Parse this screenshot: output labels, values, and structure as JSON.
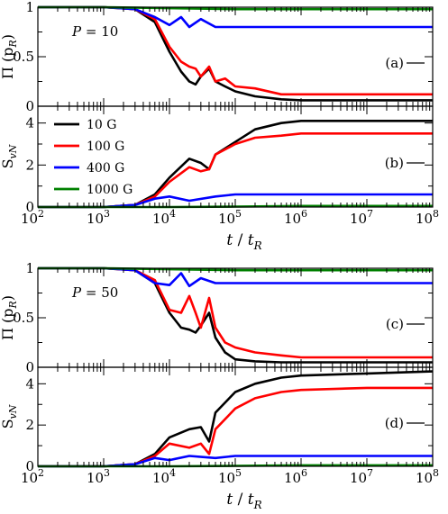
{
  "chart_data": [
    {
      "panel": "(a)",
      "type": "line",
      "annotation": "P = 10",
      "ylabel": "Π (p_R)",
      "ylabel_display": "Π (p",
      "ylabel_sub": "R",
      "ylabel_close": ")",
      "xscale": "log",
      "xlim": [
        100,
        100000000
      ],
      "ylim": [
        0,
        1
      ],
      "yticks": [
        "0",
        "0.5",
        "1"
      ],
      "grid": false,
      "series": [
        {
          "name": "10 G",
          "color": "#000000",
          "x": [
            100,
            1000,
            3000,
            6000,
            10000,
            15000,
            20000,
            25000,
            30000,
            40000,
            50000,
            70000,
            100000,
            200000,
            500000,
            1000000,
            10000000,
            100000000
          ],
          "y": [
            1.0,
            1.0,
            0.98,
            0.85,
            0.55,
            0.35,
            0.25,
            0.22,
            0.3,
            0.38,
            0.25,
            0.2,
            0.15,
            0.1,
            0.07,
            0.06,
            0.06,
            0.06
          ]
        },
        {
          "name": "100 G",
          "color": "#ff0000",
          "x": [
            100,
            1000,
            3000,
            6000,
            10000,
            15000,
            20000,
            25000,
            30000,
            40000,
            50000,
            70000,
            100000,
            200000,
            500000,
            1000000,
            10000000,
            100000000
          ],
          "y": [
            1.0,
            1.0,
            0.98,
            0.88,
            0.6,
            0.45,
            0.4,
            0.38,
            0.3,
            0.4,
            0.25,
            0.28,
            0.2,
            0.18,
            0.12,
            0.12,
            0.12,
            0.12
          ]
        },
        {
          "name": "400 G",
          "color": "#0000ff",
          "x": [
            100,
            1000,
            3000,
            6000,
            10000,
            15000,
            20000,
            30000,
            50000,
            100000,
            1000000,
            100000000
          ],
          "y": [
            1.0,
            1.0,
            0.98,
            0.9,
            0.82,
            0.9,
            0.8,
            0.88,
            0.8,
            0.8,
            0.8,
            0.8
          ]
        },
        {
          "name": "1000 G",
          "color": "#008000",
          "x": [
            100,
            1000,
            10000,
            100000,
            1000000,
            100000000
          ],
          "y": [
            1.0,
            1.0,
            0.99,
            0.98,
            0.98,
            0.98
          ]
        }
      ]
    },
    {
      "panel": "(b)",
      "type": "line",
      "ylabel": "S_vN",
      "ylabel_display": "S",
      "ylabel_sub": "vN",
      "xscale": "log",
      "xlim": [
        100,
        100000000
      ],
      "ylim": [
        0,
        4.8
      ],
      "yticks": [
        "0",
        "2",
        "4"
      ],
      "legend": "top-left",
      "grid": false,
      "series": [
        {
          "name": "10 G",
          "color": "#000000",
          "x": [
            100,
            1000,
            3000,
            6000,
            10000,
            20000,
            30000,
            40000,
            50000,
            100000,
            200000,
            500000,
            1000000,
            10000000,
            100000000
          ],
          "y": [
            0.0,
            0.0,
            0.1,
            0.6,
            1.4,
            2.3,
            2.1,
            1.8,
            2.5,
            3.1,
            3.7,
            4.0,
            4.1,
            4.1,
            4.1
          ]
        },
        {
          "name": "100 G",
          "color": "#ff0000",
          "x": [
            100,
            1000,
            3000,
            6000,
            10000,
            20000,
            30000,
            40000,
            50000,
            100000,
            200000,
            500000,
            1000000,
            10000000,
            100000000
          ],
          "y": [
            0.0,
            0.0,
            0.1,
            0.5,
            1.2,
            1.9,
            1.7,
            1.8,
            2.5,
            3.0,
            3.3,
            3.4,
            3.5,
            3.5,
            3.5
          ]
        },
        {
          "name": "400 G",
          "color": "#0000ff",
          "x": [
            100,
            1000,
            3000,
            6000,
            10000,
            20000,
            50000,
            100000,
            1000000,
            100000000
          ],
          "y": [
            0.0,
            0.0,
            0.1,
            0.4,
            0.5,
            0.3,
            0.5,
            0.6,
            0.6,
            0.6
          ]
        },
        {
          "name": "1000 G",
          "color": "#008000",
          "x": [
            100,
            1000,
            10000,
            100000,
            1000000,
            100000000
          ],
          "y": [
            0.0,
            0.0,
            0.0,
            0.02,
            0.05,
            0.05
          ]
        }
      ]
    },
    {
      "panel": "(c)",
      "type": "line",
      "annotation": "P = 50",
      "ylabel": "Π (p_R)",
      "ylabel_display": "Π (p",
      "ylabel_sub": "R",
      "ylabel_close": ")",
      "xscale": "log",
      "xlim": [
        100,
        100000000
      ],
      "ylim": [
        0,
        1
      ],
      "yticks": [
        "0",
        "0.5",
        "1"
      ],
      "grid": false,
      "series": [
        {
          "name": "10 G",
          "color": "#000000",
          "x": [
            100,
            1000,
            3000,
            6000,
            10000,
            15000,
            20000,
            25000,
            30000,
            40000,
            50000,
            70000,
            100000,
            200000,
            500000,
            1000000,
            10000000,
            100000000
          ],
          "y": [
            1.0,
            1.0,
            0.98,
            0.85,
            0.55,
            0.4,
            0.38,
            0.35,
            0.42,
            0.55,
            0.3,
            0.15,
            0.08,
            0.06,
            0.05,
            0.05,
            0.05,
            0.05
          ]
        },
        {
          "name": "100 G",
          "color": "#ff0000",
          "x": [
            100,
            1000,
            3000,
            6000,
            10000,
            15000,
            20000,
            25000,
            30000,
            40000,
            50000,
            70000,
            100000,
            200000,
            500000,
            1000000,
            10000000,
            100000000
          ],
          "y": [
            1.0,
            1.0,
            0.98,
            0.88,
            0.58,
            0.55,
            0.72,
            0.55,
            0.4,
            0.7,
            0.4,
            0.25,
            0.2,
            0.15,
            0.12,
            0.1,
            0.1,
            0.1
          ]
        },
        {
          "name": "400 G",
          "color": "#0000ff",
          "x": [
            100,
            1000,
            3000,
            6000,
            10000,
            15000,
            20000,
            30000,
            50000,
            100000,
            1000000,
            100000000
          ],
          "y": [
            1.0,
            1.0,
            0.98,
            0.85,
            0.83,
            0.95,
            0.82,
            0.9,
            0.85,
            0.85,
            0.85,
            0.85
          ]
        },
        {
          "name": "1000 G",
          "color": "#008000",
          "x": [
            100,
            1000,
            10000,
            100000,
            1000000,
            100000000
          ],
          "y": [
            1.0,
            1.0,
            0.99,
            0.98,
            0.98,
            0.98
          ]
        }
      ]
    },
    {
      "panel": "(d)",
      "type": "line",
      "ylabel": "S_vN",
      "ylabel_display": "S",
      "ylabel_sub": "vN",
      "xlabel": "t / t_R",
      "xscale": "log",
      "xlim": [
        100,
        100000000
      ],
      "ylim": [
        0,
        4.8
      ],
      "yticks": [
        "0",
        "2",
        "4"
      ],
      "grid": false,
      "series": [
        {
          "name": "10 G",
          "color": "#000000",
          "x": [
            100,
            1000,
            3000,
            6000,
            10000,
            20000,
            30000,
            40000,
            50000,
            100000,
            200000,
            500000,
            1000000,
            10000000,
            100000000
          ],
          "y": [
            0.0,
            0.0,
            0.1,
            0.6,
            1.4,
            1.8,
            1.9,
            1.2,
            2.6,
            3.6,
            4.0,
            4.3,
            4.4,
            4.5,
            4.6
          ]
        },
        {
          "name": "100 G",
          "color": "#ff0000",
          "x": [
            100,
            1000,
            3000,
            6000,
            10000,
            20000,
            30000,
            40000,
            50000,
            100000,
            200000,
            500000,
            1000000,
            10000000,
            100000000
          ],
          "y": [
            0.0,
            0.0,
            0.1,
            0.5,
            1.1,
            0.9,
            1.1,
            0.6,
            1.8,
            2.8,
            3.3,
            3.6,
            3.7,
            3.8,
            3.8
          ]
        },
        {
          "name": "400 G",
          "color": "#0000ff",
          "x": [
            100,
            1000,
            3000,
            6000,
            10000,
            20000,
            50000,
            100000,
            1000000,
            100000000
          ],
          "y": [
            0.0,
            0.0,
            0.1,
            0.4,
            0.3,
            0.5,
            0.4,
            0.5,
            0.5,
            0.5
          ]
        },
        {
          "name": "1000 G",
          "color": "#008000",
          "x": [
            100,
            1000,
            10000,
            100000,
            1000000,
            100000000
          ],
          "y": [
            0.0,
            0.0,
            0.0,
            0.02,
            0.05,
            0.05
          ]
        }
      ]
    }
  ],
  "x_axis": {
    "label_t": "t",
    "label_sep": " / ",
    "label_tr": "t",
    "label_sub": "R",
    "ticks": [
      {
        "base": "10",
        "exp": "2"
      },
      {
        "base": "10",
        "exp": "3"
      },
      {
        "base": "10",
        "exp": "4"
      },
      {
        "base": "10",
        "exp": "5"
      },
      {
        "base": "10",
        "exp": "6"
      },
      {
        "base": "10",
        "exp": "7"
      },
      {
        "base": "10",
        "exp": "8"
      }
    ]
  }
}
